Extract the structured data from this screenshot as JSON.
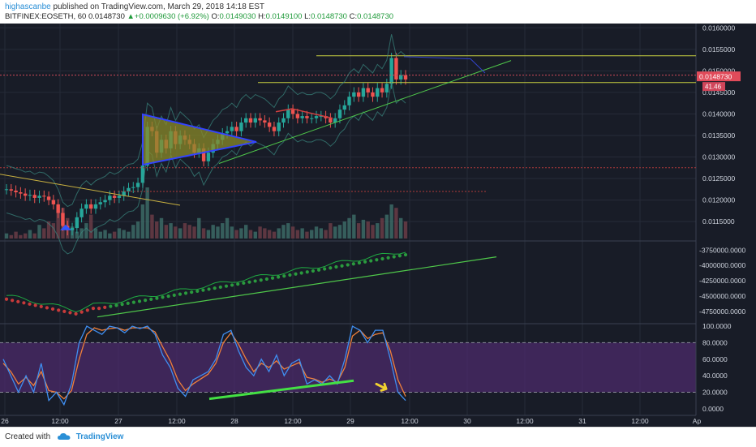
{
  "header": {
    "author": "highascanbe",
    "published_text": "published on TradingView.com, March 29, 2018 14:18 EST",
    "symbol_interval": "BITFINEX:EOSETH, 60",
    "last_price": "0.0148730",
    "change": "+0.0009630 (+6.92%)",
    "o_label": "O:",
    "o_value": "0.0149030",
    "h_label": "H:",
    "h_value": "0.0149100",
    "l_label": "L:",
    "l_value": "0.0148730",
    "c_label": "C:",
    "c_value": "0.0148730"
  },
  "footer": {
    "created_with": "Created with",
    "brand": "TradingView"
  },
  "colors": {
    "background": "#181c27",
    "up_candle": "#26a69a",
    "down_candle": "#ef5350",
    "macd_line": "#1faa42",
    "stoch_k": "#3f8ef0",
    "stoch_d": "#f0803a",
    "stoch_band": "#4b2a6b",
    "triangle_fill": "#8a8a2a",
    "triangle_edge": "#3344ff"
  },
  "chart_data": [
    {
      "type": "candlestick",
      "panel": "price",
      "symbol": "BITFINEX:EOSETH",
      "interval": "60",
      "x_tick_labels": [
        "26",
        "12:00",
        "27",
        "12:00",
        "28",
        "12:00",
        "29",
        "12:00",
        "30",
        "12:00",
        "31",
        "12:00",
        "Ap"
      ],
      "y_tick_labels": [
        "0.0160000",
        "0.0155000",
        "0.0150000",
        "0.0145000",
        "0.0140000",
        "0.0135000",
        "0.0130000",
        "0.0125000",
        "0.0120000",
        "0.0115000"
      ],
      "ylim": [
        0.01105,
        0.0161
      ],
      "last_price_label": "0.0148730",
      "volume_label": "41.46",
      "close_series": [
        0.01225,
        0.01222,
        0.01218,
        0.01215,
        0.0121,
        0.01212,
        0.01205,
        0.0121,
        0.01208,
        0.012,
        0.0119,
        0.0117,
        0.0114,
        0.0113,
        0.01135,
        0.0116,
        0.0118,
        0.0119,
        0.0118,
        0.0119,
        0.01195,
        0.012,
        0.0121,
        0.01205,
        0.0121,
        0.0122,
        0.01228,
        0.0123,
        0.0124,
        0.0128,
        0.0137,
        0.0136,
        0.0131,
        0.0134,
        0.0132,
        0.0136,
        0.0133,
        0.0135,
        0.0134,
        0.0133,
        0.0131,
        0.0132,
        0.0129,
        0.0131,
        0.0133,
        0.0134,
        0.01355,
        0.0136,
        0.0137,
        0.0136,
        0.0138,
        0.0139,
        0.0138,
        0.0139,
        0.01385,
        0.0138,
        0.0137,
        0.0136,
        0.0138,
        0.0139,
        0.0141,
        0.014,
        0.0139,
        0.01395,
        0.0139,
        0.0139,
        0.01395,
        0.01395,
        0.0139,
        0.0138,
        0.0139,
        0.0141,
        0.0142,
        0.0144,
        0.0145,
        0.0144,
        0.0146,
        0.0145,
        0.0144,
        0.0146,
        0.0145,
        0.0147,
        0.0153,
        0.0148,
        0.0149,
        0.0148
      ]
    },
    {
      "type": "line",
      "panel": "indicator",
      "y_tick_labels": [
        "-3750000.0000",
        "-4000000.0000",
        "-4250000.0000",
        "-4500000.0000",
        "-4750000.0000"
      ],
      "ylim": [
        -4950000,
        -3600000
      ]
    },
    {
      "type": "line",
      "panel": "stochastic",
      "y_tick_labels": [
        "100.0000",
        "80.0000",
        "60.0000",
        "40.0000",
        "20.0000",
        "0.0000"
      ],
      "ylim": [
        -8,
        103
      ],
      "series": [
        {
          "values": [
            60,
            40,
            20,
            40,
            20,
            55,
            10,
            20,
            5,
            30,
            80,
            100,
            95,
            90,
            100,
            98,
            92,
            100,
            97,
            100,
            90,
            65,
            50,
            25,
            15,
            35,
            40,
            45,
            60,
            90,
            95,
            70,
            50,
            40,
            60,
            45,
            65,
            40,
            55,
            60,
            30,
            35,
            30,
            40,
            30,
            60,
            100,
            95,
            80,
            95,
            95,
            60,
            20,
            10
          ]
        },
        {
          "values": [
            55,
            45,
            30,
            38,
            28,
            45,
            22,
            20,
            12,
            22,
            60,
            90,
            98,
            95,
            97,
            98,
            95,
            98,
            98,
            98,
            93,
            75,
            58,
            35,
            22,
            30,
            36,
            42,
            55,
            80,
            92,
            78,
            60,
            45,
            55,
            50,
            58,
            48,
            52,
            56,
            38,
            36,
            32,
            36,
            32,
            50,
            88,
            95,
            85,
            90,
            92,
            70,
            35,
            15
          ]
        }
      ]
    }
  ]
}
